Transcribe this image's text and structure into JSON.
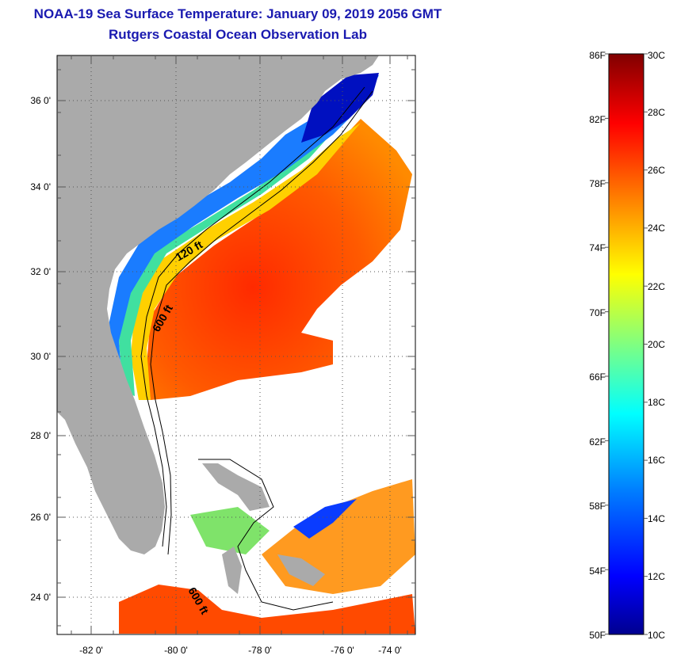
{
  "header": {
    "title_line1": "NOAA-19 Sea Surface Temperature:  January 09, 2019 2056 GMT",
    "title_line2": "Rutgers Coastal Ocean Observation Lab"
  },
  "map": {
    "lat_labels": [
      "36 0'",
      "34 0'",
      "32 0'",
      "30 0'",
      "28 0'",
      "26 0'",
      "24 0'"
    ],
    "lon_labels": [
      "-82 0'",
      "-80 0'",
      "-78 0'",
      "-76 0'",
      "-74 0'"
    ],
    "contour_labels": [
      "120 ft",
      "600 ft",
      "600 ft"
    ],
    "colors": {
      "land": "#aaaaaa",
      "no_data": "#ffffff"
    }
  },
  "colorbar": {
    "fahrenheit_labels": [
      "86F",
      "82F",
      "78F",
      "74F",
      "70F",
      "66F",
      "62F",
      "58F",
      "54F",
      "50F"
    ],
    "celsius_labels": [
      "30C",
      "28C",
      "26C",
      "24C",
      "22C",
      "20C",
      "18C",
      "16C",
      "14C",
      "12C",
      "10C"
    ],
    "stops": [
      "#00008f",
      "#0000ff",
      "#0080ff",
      "#00ffff",
      "#80ff80",
      "#ffff00",
      "#ff8000",
      "#ff0000",
      "#800000"
    ]
  }
}
